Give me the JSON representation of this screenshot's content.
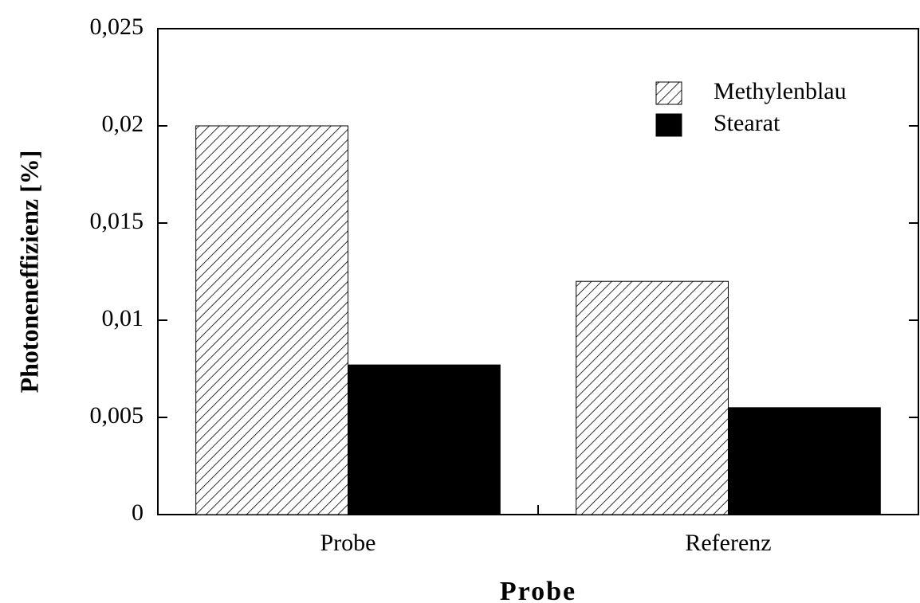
{
  "chart_data": {
    "type": "bar",
    "xlabel": "Probe",
    "ylabel": "Photoneneffizienz  [%]",
    "categories": [
      "Probe",
      "Referenz"
    ],
    "series": [
      {
        "name": "Methylenblau",
        "color": "#000000",
        "pattern": "hatch",
        "values": [
          0.02,
          0.012
        ]
      },
      {
        "name": "Stearat",
        "color": "#000000",
        "pattern": "solid",
        "values": [
          0.0077,
          0.0055
        ]
      }
    ],
    "ylim": [
      0,
      0.025
    ],
    "yticks": [
      0,
      {
        "value": 0.005,
        "label": "0,005"
      },
      {
        "value": 0.01,
        "label": "0,01"
      },
      {
        "value": 0.015,
        "label": "0,015"
      },
      {
        "value": 0.02,
        "label": "0,02"
      },
      {
        "value": 0.025,
        "label": "0,025"
      }
    ],
    "legend": "upper right",
    "grid": false
  }
}
